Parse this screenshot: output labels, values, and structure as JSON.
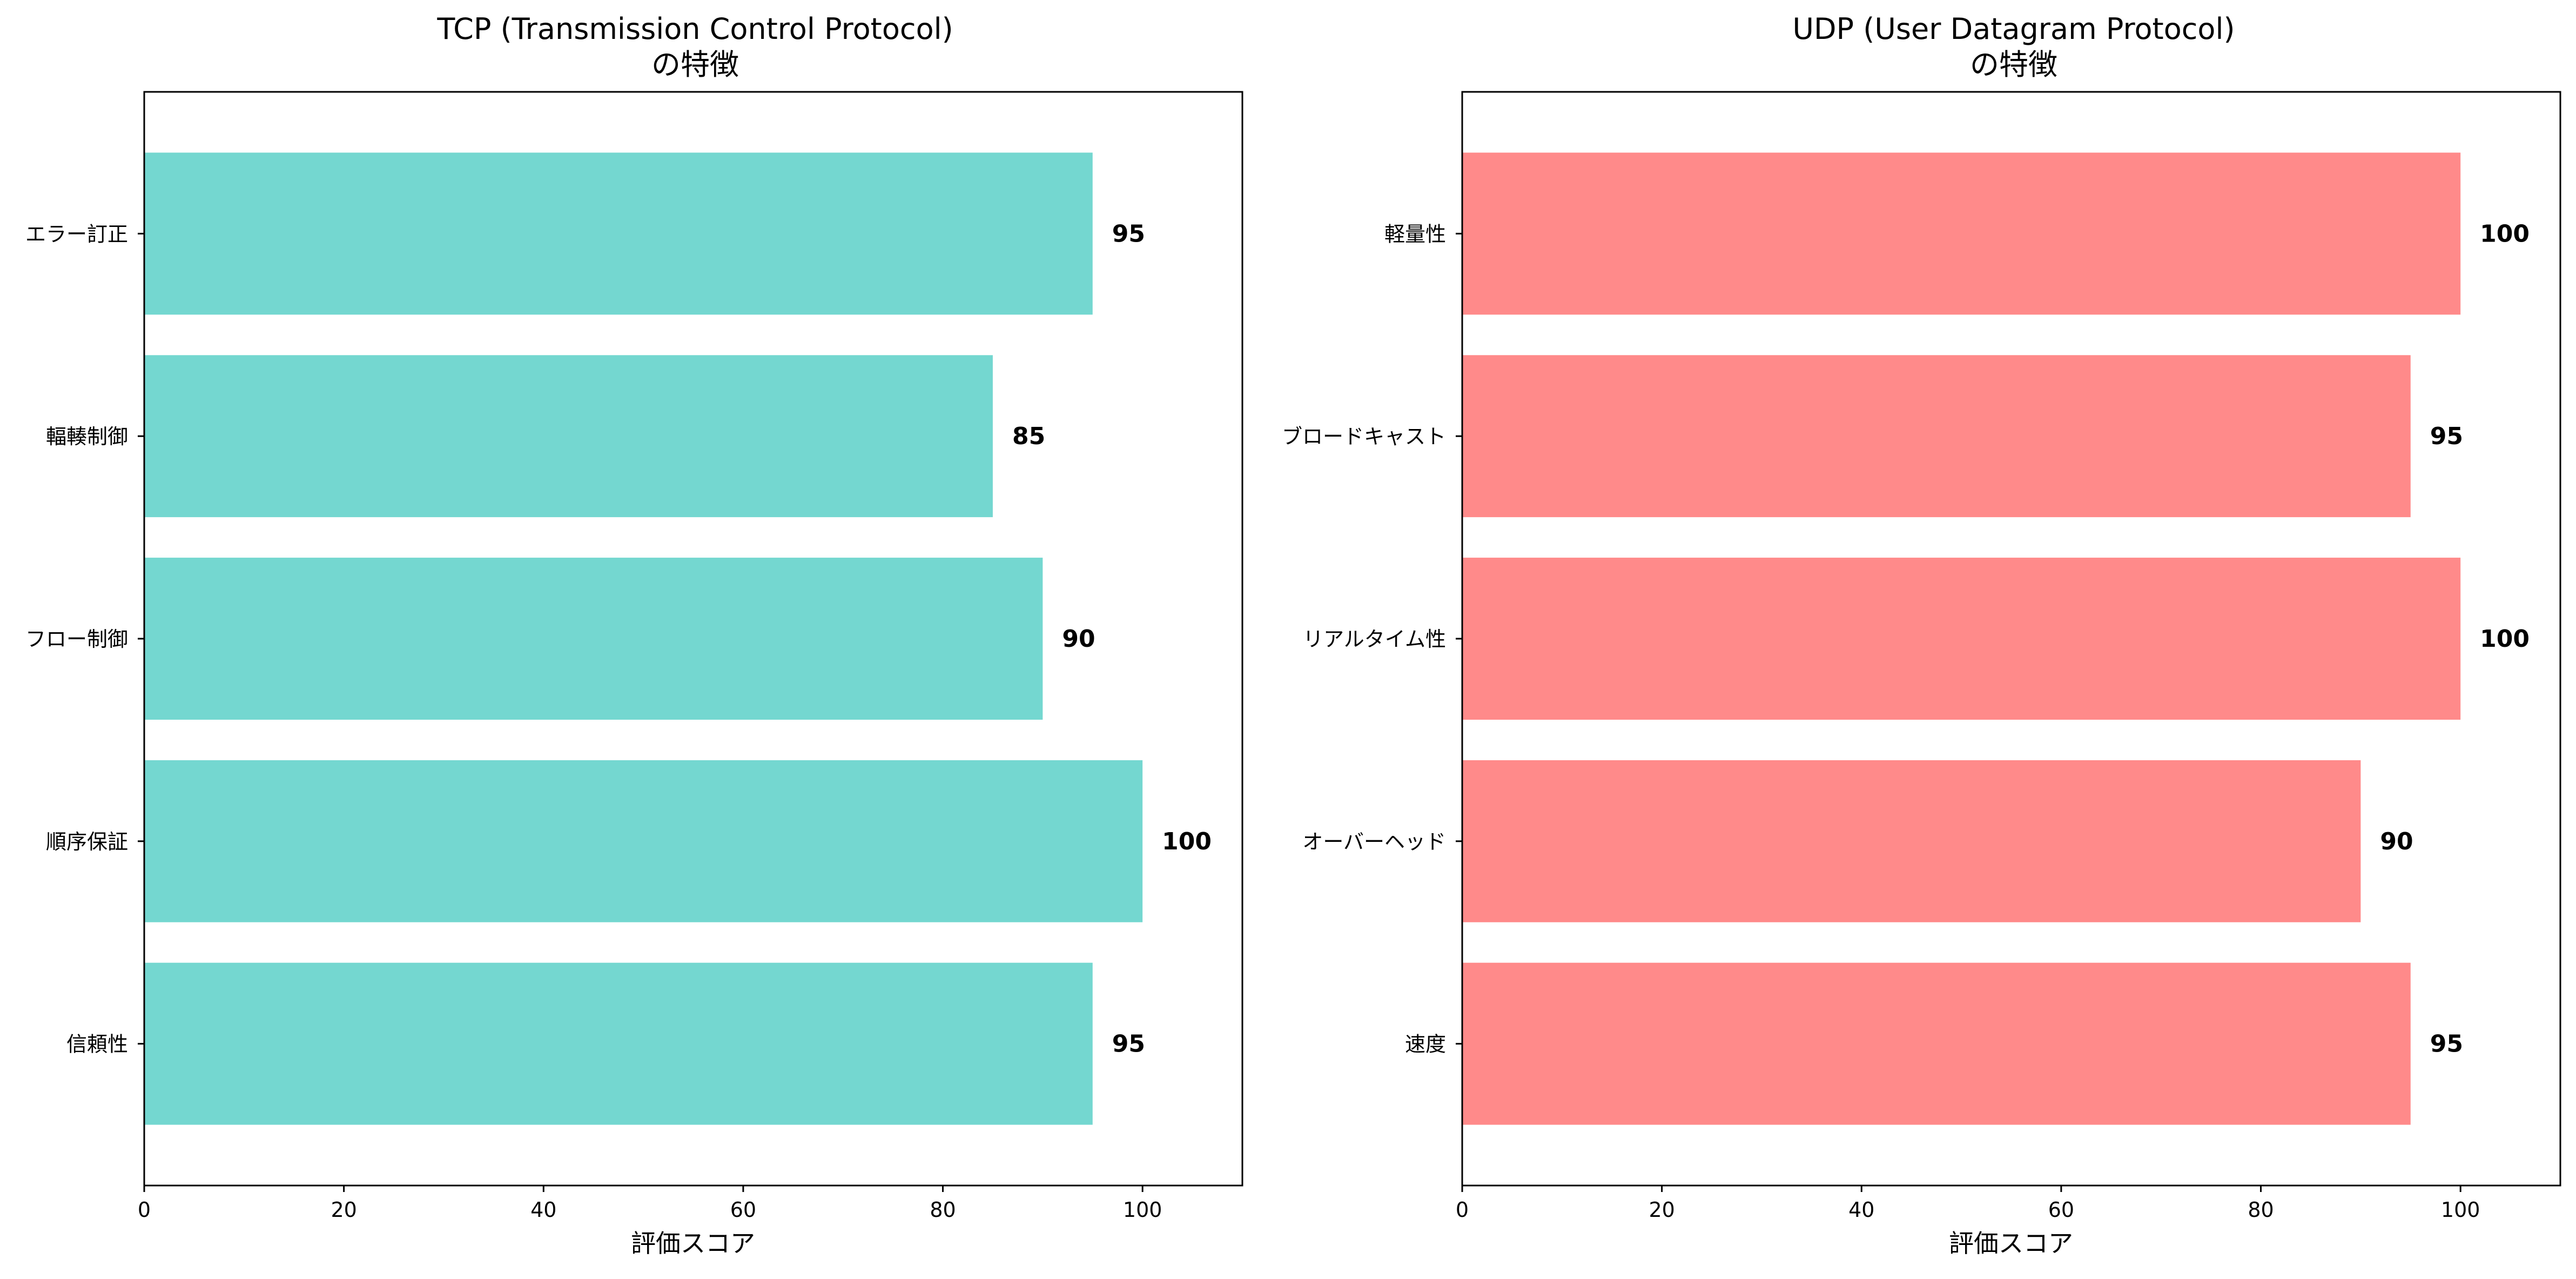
{
  "chart_data": [
    {
      "type": "bar",
      "orientation": "horizontal",
      "title_line1": "TCP (Transmission Control Protocol)",
      "title_line2": "の特徴",
      "xlabel": "評価スコア",
      "ylabel": "",
      "xlim": [
        0,
        110
      ],
      "xticks": [
        "0",
        "20",
        "40",
        "60",
        "80",
        "100"
      ],
      "categories": [
        "エラー訂正",
        "輻輳制御",
        "フロー制御",
        "順序保証",
        "信頼性"
      ],
      "values": [
        95,
        85,
        90,
        100,
        95
      ],
      "value_labels": [
        "95",
        "85",
        "90",
        "100",
        "95"
      ],
      "color": "#74D7D0",
      "grid": false
    },
    {
      "type": "bar",
      "orientation": "horizontal",
      "title_line1": "UDP (User Datagram Protocol)",
      "title_line2": "の特徴",
      "xlabel": "評価スコア",
      "ylabel": "",
      "xlim": [
        0,
        110
      ],
      "xticks": [
        "0",
        "20",
        "40",
        "60",
        "80",
        "100"
      ],
      "categories": [
        "軽量性",
        "ブロードキャスト",
        "リアルタイム性",
        "オーバーヘッド",
        "速度"
      ],
      "values": [
        100,
        95,
        100,
        90,
        95
      ],
      "value_labels": [
        "100",
        "95",
        "100",
        "90",
        "95"
      ],
      "color": "#FF8A8A",
      "grid": false
    }
  ]
}
